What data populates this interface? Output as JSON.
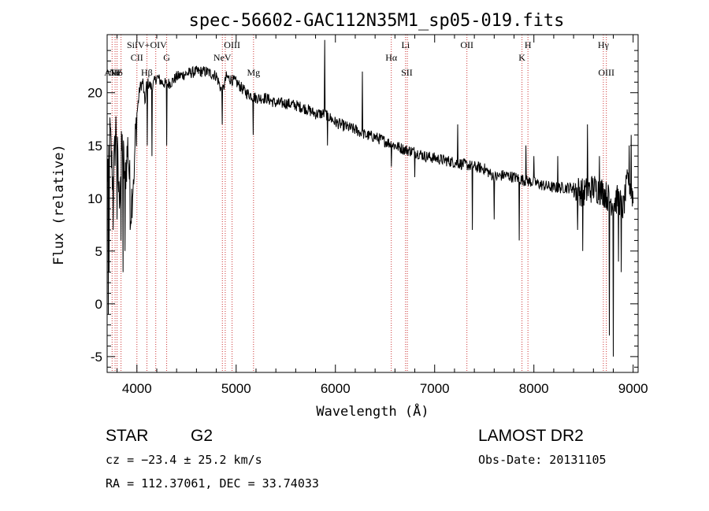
{
  "chart_data": {
    "type": "line",
    "title": "spec-56602-GAC112N35M1_sp05-019.fits",
    "xlabel": "Wavelength (Å)",
    "ylabel": "Flux (relative)",
    "xlim": [
      3700,
      9050
    ],
    "ylim": [
      -6.5,
      25.5
    ],
    "xticks": [
      4000,
      5000,
      6000,
      7000,
      8000,
      9000
    ],
    "yticks": [
      -5,
      0,
      5,
      10,
      15,
      20
    ],
    "grid": false,
    "spectrum_anchors": [
      [
        3700,
        12
      ],
      [
        3730,
        16
      ],
      [
        3760,
        11
      ],
      [
        3790,
        17
      ],
      [
        3820,
        10
      ],
      [
        3850,
        15
      ],
      [
        3880,
        12
      ],
      [
        3910,
        15
      ],
      [
        3940,
        9
      ],
      [
        3970,
        13
      ],
      [
        4000,
        18
      ],
      [
        4030,
        20.5
      ],
      [
        4060,
        21
      ],
      [
        4080,
        19
      ],
      [
        4100,
        21
      ],
      [
        4150,
        20.5
      ],
      [
        4200,
        21.5
      ],
      [
        4250,
        21
      ],
      [
        4300,
        20.8
      ],
      [
        4350,
        21
      ],
      [
        4400,
        21.5
      ],
      [
        4500,
        21.8
      ],
      [
        4600,
        22
      ],
      [
        4700,
        22
      ],
      [
        4800,
        21.6
      ],
      [
        4861,
        20
      ],
      [
        4900,
        21.5
      ],
      [
        5000,
        21
      ],
      [
        5100,
        20
      ],
      [
        5200,
        19.5
      ],
      [
        5300,
        19.5
      ],
      [
        5400,
        19
      ],
      [
        5500,
        19
      ],
      [
        5600,
        18.8
      ],
      [
        5700,
        18.5
      ],
      [
        5800,
        18
      ],
      [
        5900,
        18
      ],
      [
        6000,
        17.2
      ],
      [
        6100,
        16.8
      ],
      [
        6200,
        16.5
      ],
      [
        6300,
        16
      ],
      [
        6400,
        15.8
      ],
      [
        6500,
        15.4
      ],
      [
        6600,
        15
      ],
      [
        6700,
        14.6
      ],
      [
        6800,
        14.4
      ],
      [
        6900,
        14
      ],
      [
        7000,
        13.8
      ],
      [
        7100,
        13.6
      ],
      [
        7200,
        13.4
      ],
      [
        7300,
        13.2
      ],
      [
        7400,
        13
      ],
      [
        7500,
        12.8
      ],
      [
        7600,
        12
      ],
      [
        7700,
        12.2
      ],
      [
        7800,
        12
      ],
      [
        7900,
        11.7
      ],
      [
        8000,
        11.5
      ],
      [
        8100,
        11.2
      ],
      [
        8200,
        11
      ],
      [
        8300,
        11
      ],
      [
        8400,
        11
      ],
      [
        8500,
        10.5
      ],
      [
        8600,
        11
      ],
      [
        8700,
        10.6
      ],
      [
        8800,
        9.5
      ],
      [
        8850,
        10
      ],
      [
        8900,
        9
      ],
      [
        8950,
        12
      ],
      [
        9000,
        10
      ]
    ],
    "spectrum_spikes": [
      [
        3710,
        -1
      ],
      [
        3720,
        3
      ],
      [
        3760,
        7
      ],
      [
        3800,
        8
      ],
      [
        3840,
        6
      ],
      [
        3860,
        3
      ],
      [
        3880,
        5
      ],
      [
        3930,
        7
      ],
      [
        3970,
        12
      ],
      [
        4102,
        15
      ],
      [
        4150,
        14
      ],
      [
        4300,
        15
      ],
      [
        4861,
        17
      ],
      [
        5170,
        16
      ],
      [
        5890,
        25
      ],
      [
        5920,
        15
      ],
      [
        6270,
        22
      ],
      [
        6563,
        13
      ],
      [
        6800,
        12
      ],
      [
        7230,
        17
      ],
      [
        7380,
        7
      ],
      [
        7600,
        8
      ],
      [
        7850,
        6
      ],
      [
        7920,
        15
      ],
      [
        8000,
        14
      ],
      [
        8240,
        14
      ],
      [
        8440,
        7
      ],
      [
        8490,
        5
      ],
      [
        8540,
        17
      ],
      [
        8660,
        14
      ],
      [
        8760,
        -3
      ],
      [
        8800,
        -5
      ],
      [
        8850,
        4
      ],
      [
        8880,
        3
      ],
      [
        8960,
        15
      ],
      [
        8980,
        16
      ]
    ],
    "spectral_lines": [
      {
        "name": "AlII",
        "wavelength": 3750,
        "row": 1
      },
      {
        "name": "Ne",
        "wavelength": 3780,
        "row": 1
      },
      {
        "name": "Hδ",
        "wavelength": 3800,
        "row": 1
      },
      {
        "name": "SiIV+OIV",
        "wavelength": 4100,
        "row": 3
      },
      {
        "name": "CII",
        "wavelength": 4000,
        "row": 2
      },
      {
        "name": "Hβ",
        "wavelength": 4100,
        "row": 1
      },
      {
        "name": "G",
        "wavelength": 4300,
        "row": 2
      },
      {
        "name": "OIII",
        "wavelength": 4959,
        "row": 3
      },
      {
        "name": "NeV",
        "wavelength": 4861,
        "row": 2
      },
      {
        "name": "Mg",
        "wavelength": 5175,
        "row": 1
      },
      {
        "name": "Li",
        "wavelength": 6707,
        "row": 3
      },
      {
        "name": "Hα",
        "wavelength": 6563,
        "row": 2
      },
      {
        "name": "SII",
        "wavelength": 6720,
        "row": 1
      },
      {
        "name": "OII",
        "wavelength": 7325,
        "row": 3
      },
      {
        "name": "H",
        "wavelength": 7940,
        "row": 3
      },
      {
        "name": "K",
        "wavelength": 7880,
        "row": 2
      },
      {
        "name": "Hγ",
        "wavelength": 8700,
        "row": 3
      },
      {
        "name": "OIII",
        "wavelength": 8730,
        "row": 1
      }
    ],
    "line_markers": [
      3750,
      3780,
      3800,
      3840,
      4000,
      4101,
      4190,
      4300,
      4861,
      4890,
      4959,
      5175,
      6563,
      6707,
      6725,
      7325,
      7880,
      7940,
      8700,
      8730
    ]
  },
  "colors": {
    "spectrum": "#000000",
    "line_markers": "#cc3333",
    "axes": "#000000"
  },
  "info": {
    "class": "STAR",
    "subclass": "G2",
    "survey": "LAMOST DR2",
    "redshift": "cz = −23.4 ± 25.2 km/s",
    "obs_date": "Obs-Date: 20131105",
    "coords": "RA = 112.37061, DEC =  33.74033"
  }
}
